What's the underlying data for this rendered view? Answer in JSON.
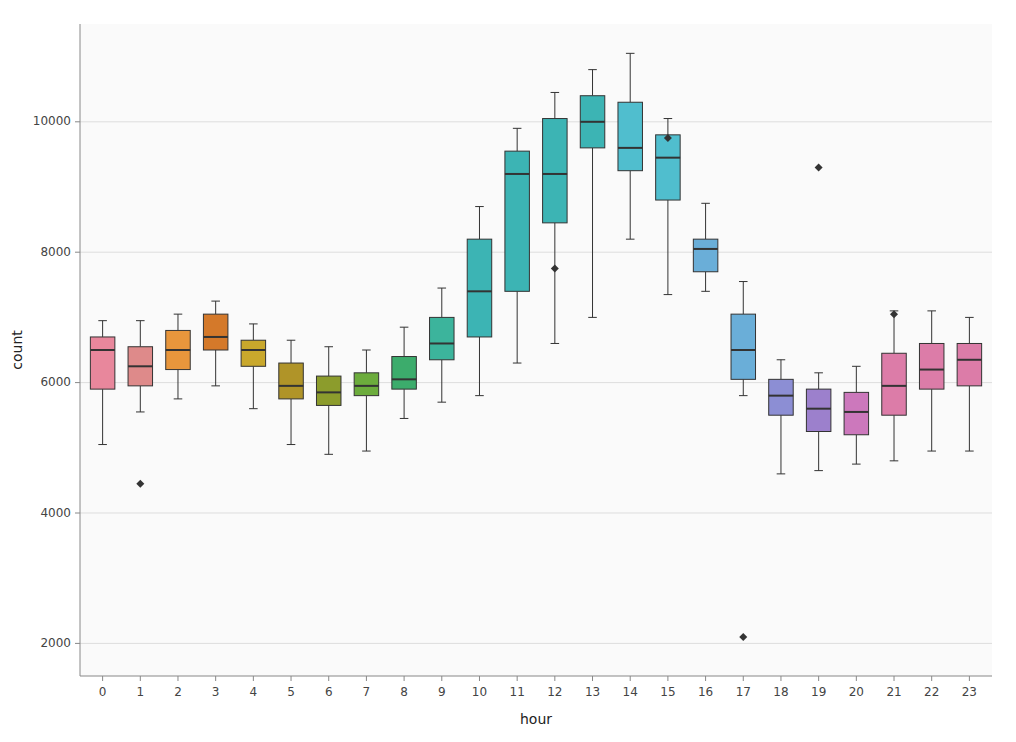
{
  "chart_data": {
    "type": "box",
    "xlabel": "hour",
    "ylabel": "count",
    "x": [
      0,
      1,
      2,
      3,
      4,
      5,
      6,
      7,
      8,
      9,
      10,
      11,
      12,
      13,
      14,
      15,
      16,
      17,
      18,
      19,
      20,
      21,
      22,
      23
    ],
    "boxes": [
      {
        "whislo": 5050,
        "q1": 5900,
        "med": 6500,
        "q3": 6700,
        "whishi": 6950,
        "fliers": []
      },
      {
        "whislo": 5550,
        "q1": 5950,
        "med": 6250,
        "q3": 6550,
        "whishi": 6950,
        "fliers": [
          4450
        ]
      },
      {
        "whislo": 5750,
        "q1": 6200,
        "med": 6500,
        "q3": 6800,
        "whishi": 7050,
        "fliers": []
      },
      {
        "whislo": 5950,
        "q1": 6500,
        "med": 6700,
        "q3": 7050,
        "whishi": 7250,
        "fliers": []
      },
      {
        "whislo": 5600,
        "q1": 6250,
        "med": 6500,
        "q3": 6650,
        "whishi": 6900,
        "fliers": []
      },
      {
        "whislo": 5050,
        "q1": 5750,
        "med": 5950,
        "q3": 6300,
        "whishi": 6650,
        "fliers": []
      },
      {
        "whislo": 4900,
        "q1": 5650,
        "med": 5850,
        "q3": 6100,
        "whishi": 6550,
        "fliers": []
      },
      {
        "whislo": 4950,
        "q1": 5800,
        "med": 5950,
        "q3": 6150,
        "whishi": 6500,
        "fliers": []
      },
      {
        "whislo": 5450,
        "q1": 5900,
        "med": 6050,
        "q3": 6400,
        "whishi": 6850,
        "fliers": []
      },
      {
        "whislo": 5700,
        "q1": 6350,
        "med": 6600,
        "q3": 7000,
        "whishi": 7450,
        "fliers": []
      },
      {
        "whislo": 5800,
        "q1": 6700,
        "med": 7400,
        "q3": 8200,
        "whishi": 8700,
        "fliers": []
      },
      {
        "whislo": 6300,
        "q1": 7400,
        "med": 9200,
        "q3": 9550,
        "whishi": 9900,
        "fliers": []
      },
      {
        "whislo": 6600,
        "q1": 8450,
        "med": 9200,
        "q3": 10050,
        "whishi": 10450,
        "fliers": [
          7750
        ]
      },
      {
        "whislo": 7000,
        "q1": 9600,
        "med": 10000,
        "q3": 10400,
        "whishi": 10800,
        "fliers": []
      },
      {
        "whislo": 8200,
        "q1": 9250,
        "med": 9600,
        "q3": 10300,
        "whishi": 11050,
        "fliers": []
      },
      {
        "whislo": 7350,
        "q1": 8800,
        "med": 9450,
        "q3": 9800,
        "whishi": 10050,
        "fliers": [
          9750
        ]
      },
      {
        "whislo": 7400,
        "q1": 7700,
        "med": 8050,
        "q3": 8200,
        "whishi": 8750,
        "fliers": []
      },
      {
        "whislo": 5800,
        "q1": 6050,
        "med": 6500,
        "q3": 7050,
        "whishi": 7550,
        "fliers": [
          2100
        ]
      },
      {
        "whislo": 4600,
        "q1": 5500,
        "med": 5800,
        "q3": 6050,
        "whishi": 6350,
        "fliers": []
      },
      {
        "whislo": 4650,
        "q1": 5250,
        "med": 5600,
        "q3": 5900,
        "whishi": 6150,
        "fliers": [
          9300
        ]
      },
      {
        "whislo": 4750,
        "q1": 5200,
        "med": 5550,
        "q3": 5850,
        "whishi": 6250,
        "fliers": []
      },
      {
        "whislo": 4800,
        "q1": 5500,
        "med": 5950,
        "q3": 6450,
        "whishi": 7100,
        "fliers": [
          7050
        ]
      },
      {
        "whislo": 4950,
        "q1": 5900,
        "med": 6200,
        "q3": 6600,
        "whishi": 7100,
        "fliers": []
      },
      {
        "whislo": 4950,
        "q1": 5950,
        "med": 6350,
        "q3": 6600,
        "whishi": 7000,
        "fliers": []
      }
    ],
    "colors": [
      "#E8879C",
      "#DE8A8A",
      "#E8963C",
      "#D4792A",
      "#C9A82C",
      "#B09428",
      "#8C9C2C",
      "#6CAC3C",
      "#3CAC6C",
      "#3CB49C",
      "#3CB4B4",
      "#3CB4B4",
      "#3CB4B4",
      "#3CB4B4",
      "#50BECE",
      "#50BECE",
      "#6AAED8",
      "#6AAED8",
      "#8C8ED4",
      "#9C80CC",
      "#CC78BC",
      "#DC7CA8",
      "#DC7CA8",
      "#DC7CA8"
    ],
    "xlim": [
      -0.6,
      23.6
    ],
    "xticks": [
      0,
      1,
      2,
      3,
      4,
      5,
      6,
      7,
      8,
      9,
      10,
      11,
      12,
      13,
      14,
      15,
      16,
      17,
      18,
      19,
      20,
      21,
      22,
      23
    ],
    "ylim": [
      1500,
      11500
    ],
    "yticks": [
      2000,
      4000,
      6000,
      8000,
      10000
    ],
    "grid": true
  }
}
